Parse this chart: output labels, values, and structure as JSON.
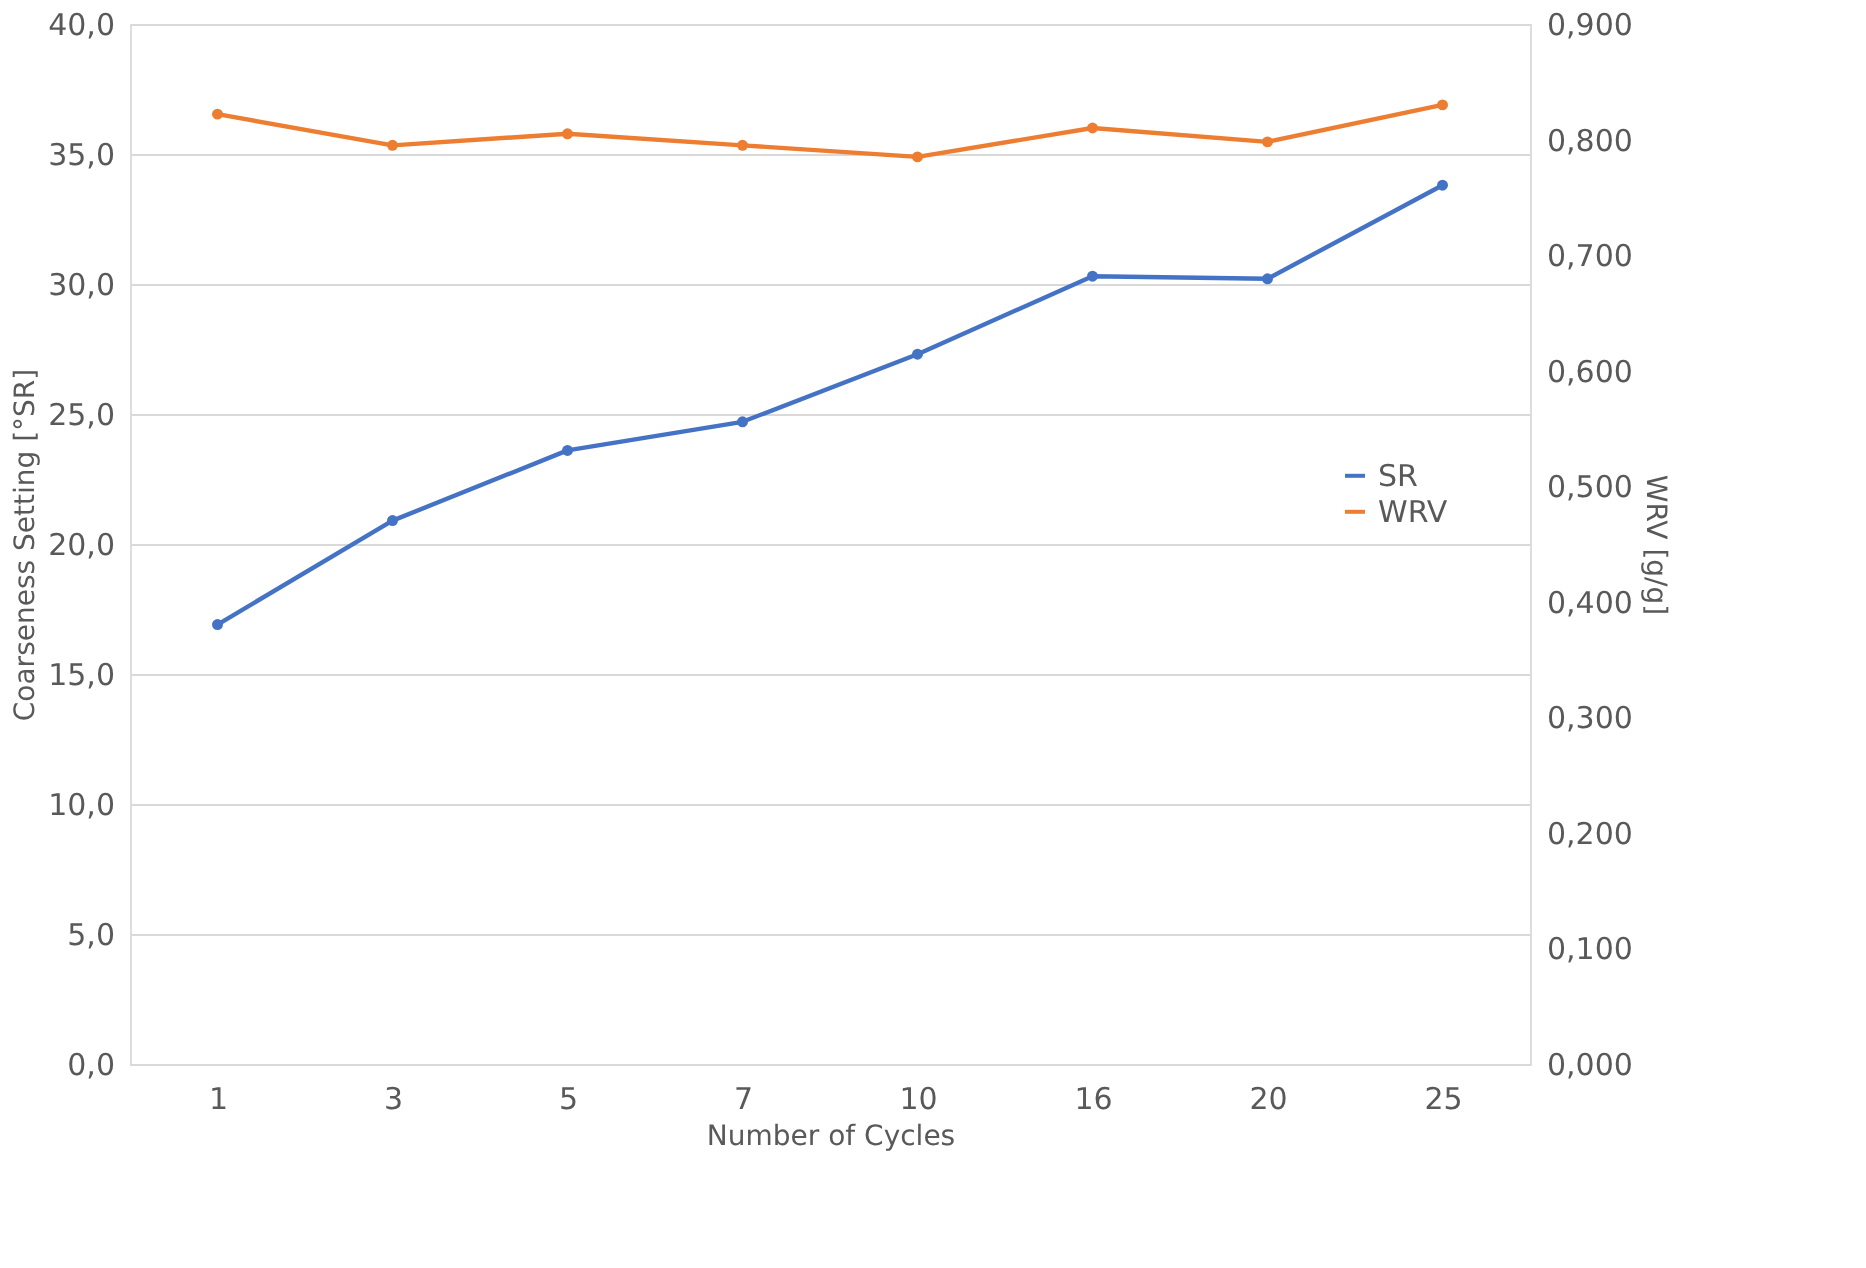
{
  "chart_data": {
    "type": "line",
    "categories": [
      "1",
      "3",
      "5",
      "7",
      "10",
      "16",
      "20",
      "25"
    ],
    "xlabel": "Number of Cycles",
    "ylabel": "Coarseness Setting [°SR]",
    "y2label": "WRV [g/g]",
    "series": [
      {
        "name": "SR",
        "color": "#4472c4",
        "values": [
          16.9,
          20.9,
          23.6,
          24.7,
          27.3,
          30.3,
          30.2,
          33.8
        ]
      },
      {
        "name": "WRV",
        "color": "#ed7d31",
        "axis": "y2",
        "values": [
          0.822,
          0.795,
          0.805,
          0.795,
          0.785,
          0.81,
          0.798,
          0.83
        ]
      }
    ],
    "ylim": [
      0,
      40
    ],
    "yticks": [
      {
        "value": 0,
        "label": "0,0"
      },
      {
        "value": 5,
        "label": "5,0"
      },
      {
        "value": 10,
        "label": "10,0"
      },
      {
        "value": 15,
        "label": "15,0"
      },
      {
        "value": 20,
        "label": "20,0"
      },
      {
        "value": 25,
        "label": "25,0"
      },
      {
        "value": 30,
        "label": "30,0"
      },
      {
        "value": 35,
        "label": "35,0"
      },
      {
        "value": 40,
        "label": "40,0"
      }
    ],
    "y2lim": [
      0,
      0.9
    ],
    "y2ticks": [
      {
        "value": 0,
        "label": "0,000"
      },
      {
        "value": 0.1,
        "label": "0,100"
      },
      {
        "value": 0.2,
        "label": "0,200"
      },
      {
        "value": 0.3,
        "label": "0,300"
      },
      {
        "value": 0.4,
        "label": "0,400"
      },
      {
        "value": 0.5,
        "label": "0,500"
      },
      {
        "value": 0.6,
        "label": "0,600"
      },
      {
        "value": 0.7,
        "label": "0,700"
      },
      {
        "value": 0.8,
        "label": "0,800"
      },
      {
        "value": 0.9,
        "label": "0,900"
      }
    ],
    "grid": "y",
    "legend": "right",
    "marker": "circle",
    "line_style": "solid"
  }
}
